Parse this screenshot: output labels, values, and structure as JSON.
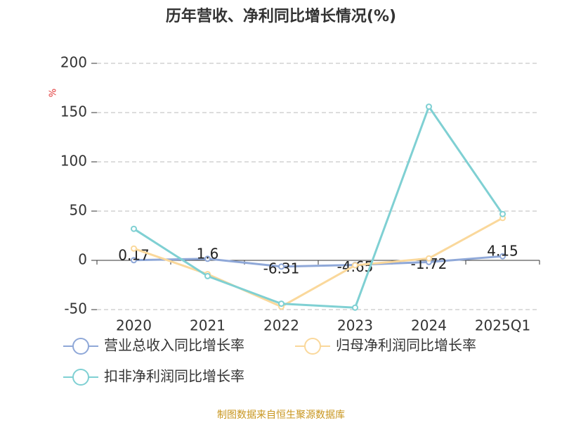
{
  "chart_data": {
    "type": "line",
    "title": "历年营收、净利同比增长情况(%)",
    "y_label": "%",
    "source": "制图数据来自恒生聚源数据库",
    "categories": [
      "2020",
      "2021",
      "2022",
      "2023",
      "2024",
      "2025Q1"
    ],
    "series": [
      {
        "name": "营业总收入同比增长率",
        "color": "#8fa8d8",
        "values": [
          0.17,
          1.6,
          -6.31,
          -4.65,
          -1.72,
          4.15
        ],
        "show_labels": true
      },
      {
        "name": "归母净利润同比增长率",
        "color": "#fad89b",
        "values": [
          12,
          -14,
          -47,
          -5,
          2,
          43
        ]
      },
      {
        "name": "扣非净利润同比增长率",
        "color": "#7fd0d3",
        "values": [
          32,
          -16,
          -44,
          -48,
          156,
          47
        ]
      }
    ],
    "ylim": [
      -50,
      200
    ],
    "yticks": [
      -50,
      0,
      50,
      100,
      150,
      200
    ],
    "grid": true
  }
}
